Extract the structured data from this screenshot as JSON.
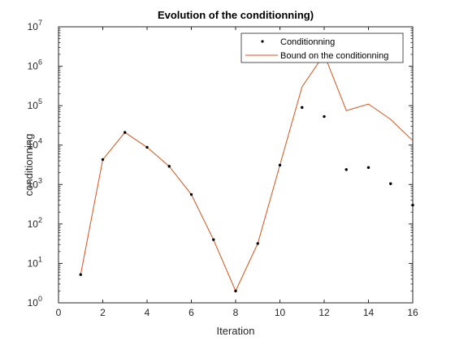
{
  "chart_data": {
    "type": "line",
    "title": "Evolution of the conditionning)",
    "xlabel": "Iteration",
    "ylabel": "conditionning",
    "xlim": [
      0,
      16
    ],
    "ylim": [
      1,
      10000000
    ],
    "yscale": "log",
    "grid": false,
    "legend_position": "top-right",
    "x_ticks": [
      "0",
      "2",
      "4",
      "6",
      "8",
      "10",
      "12",
      "14",
      "16"
    ],
    "y_tick_base": "10",
    "y_tick_exponents": [
      "0",
      "1",
      "2",
      "3",
      "4",
      "5",
      "6",
      "7"
    ],
    "series": [
      {
        "name": "Conditionning",
        "style": "markers",
        "color": "#000000",
        "x": [
          1,
          2,
          3,
          4,
          5,
          6,
          7,
          8,
          9,
          10,
          11,
          12,
          13,
          14,
          15,
          16
        ],
        "values": [
          5.2,
          4300,
          21000,
          8800,
          2900,
          560,
          40,
          2,
          32,
          3100,
          90000,
          53000,
          2400,
          2700,
          1050,
          300
        ]
      },
      {
        "name": "Bound on the conditionning",
        "style": "line",
        "color": "#d95319",
        "x": [
          1,
          2,
          3,
          4,
          5,
          6,
          7,
          8,
          9,
          10,
          11,
          12,
          13,
          14,
          15,
          16
        ],
        "values": [
          5.2,
          4300,
          21000,
          8800,
          2900,
          560,
          40,
          2,
          32,
          3100,
          300000,
          2000000,
          75000,
          110000,
          45000,
          13000
        ]
      }
    ]
  }
}
